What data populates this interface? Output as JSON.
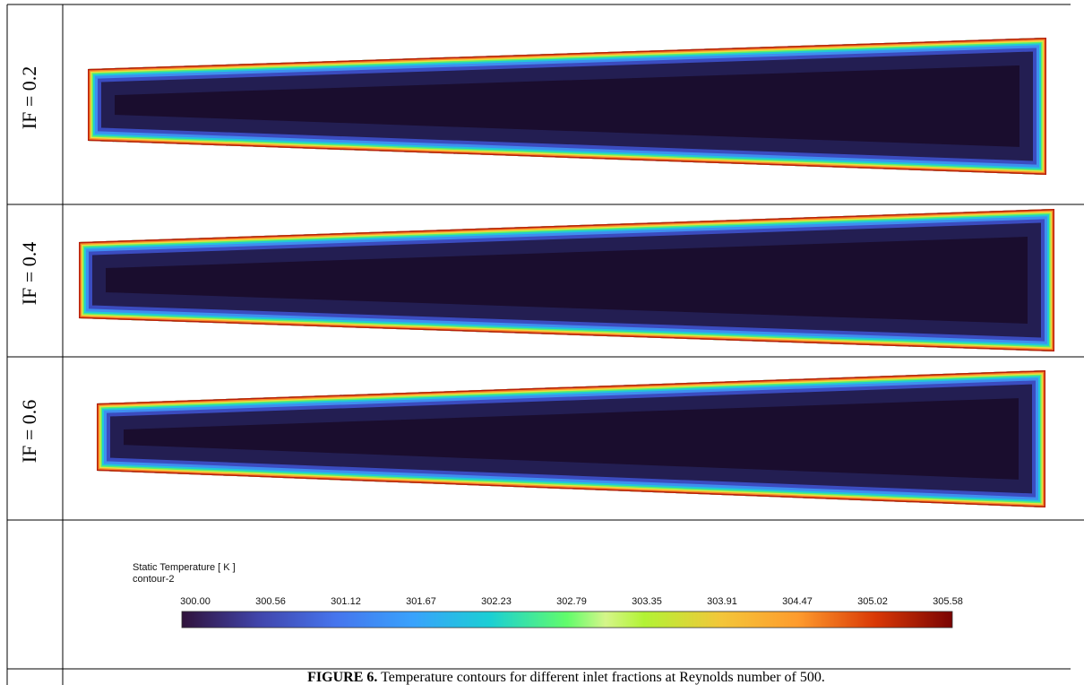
{
  "rows": [
    {
      "label": "IF = 0.2"
    },
    {
      "label": "IF = 0.4"
    },
    {
      "label": "IF = 0.6"
    }
  ],
  "colorbar": {
    "title": "Static Temperature [ K ]",
    "subtitle": "contour-2",
    "ticks": [
      "300.00",
      "300.56",
      "301.12",
      "301.67",
      "302.23",
      "302.79",
      "303.35",
      "303.91",
      "304.47",
      "305.02",
      "305.58"
    ]
  },
  "caption": {
    "label": "FIGURE 6.",
    "text": "Temperature contours for different inlet fractions at Reynolds number of 500."
  }
}
